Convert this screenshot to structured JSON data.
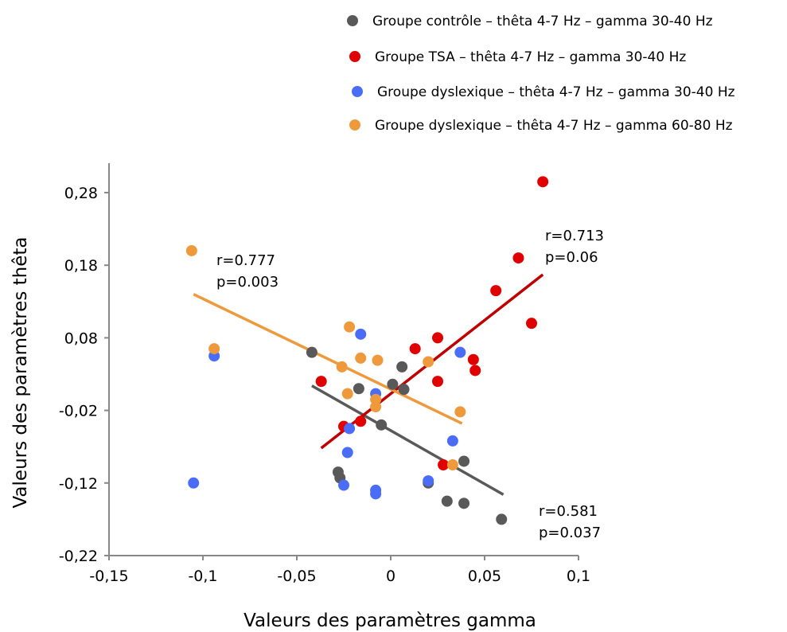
{
  "chart_data": {
    "type": "scatter",
    "xlabel": "Valeurs des paramètres gamma",
    "ylabel": "Valeurs des paramètres thêta",
    "xlim": [
      -0.15,
      0.1
    ],
    "ylim": [
      -0.22,
      0.32
    ],
    "x_ticks": [
      -0.15,
      -0.1,
      -0.05,
      0,
      0.05,
      0.1
    ],
    "x_tick_labels": [
      "-0,15",
      "-0,1",
      "-0,05",
      "0",
      "0,05",
      "0,1"
    ],
    "y_ticks": [
      -0.22,
      -0.12,
      -0.02,
      0.08,
      0.18,
      0.28
    ],
    "y_tick_labels": [
      "-0,22",
      "-0,12",
      "-0,02",
      "0,08",
      "0,18",
      "0,28"
    ],
    "grid": false,
    "legend_position": "top-right",
    "series": [
      {
        "name": "Groupe contrôle – thêta 4-7 Hz – gamma 30-40 Hz",
        "color": "#595959",
        "line_color": "#595959",
        "points": [
          [
            -0.042,
            0.06
          ],
          [
            -0.017,
            0.01
          ],
          [
            0.001,
            0.016
          ],
          [
            0.006,
            0.04
          ],
          [
            0.007,
            0.009
          ],
          [
            -0.005,
            -0.04
          ],
          [
            -0.028,
            -0.105
          ],
          [
            -0.027,
            -0.113
          ],
          [
            0.02,
            -0.12
          ],
          [
            0.039,
            -0.09
          ],
          [
            0.03,
            -0.145
          ],
          [
            0.039,
            -0.148
          ],
          [
            0.059,
            -0.17
          ]
        ],
        "trend_line": [
          [
            -0.042,
            0.014
          ],
          [
            0.06,
            -0.136
          ]
        ],
        "annotation": [
          "r=0.581",
          "p=0.037"
        ]
      },
      {
        "name": "Groupe TSA – thêta 4-7 Hz – gamma 30-40 Hz",
        "color": "#e00000",
        "line_color": "#c00000",
        "points": [
          [
            -0.037,
            0.02
          ],
          [
            -0.025,
            -0.042
          ],
          [
            -0.016,
            -0.035
          ],
          [
            0.013,
            0.065
          ],
          [
            0.025,
            0.08
          ],
          [
            0.025,
            0.02
          ],
          [
            0.028,
            -0.095
          ],
          [
            0.044,
            0.05
          ],
          [
            0.045,
            0.035
          ],
          [
            0.056,
            0.145
          ],
          [
            0.068,
            0.19
          ],
          [
            0.075,
            0.1
          ],
          [
            0.081,
            0.295
          ]
        ],
        "trend_line": [
          [
            -0.037,
            -0.072
          ],
          [
            0.081,
            0.167
          ]
        ],
        "annotation": [
          "r=0.713",
          "p=0.06"
        ]
      },
      {
        "name": "Groupe dyslexique – thêta 4-7 Hz – gamma 30-40 Hz",
        "color": "#4a6cf7",
        "line_color": "",
        "points": [
          [
            -0.105,
            -0.12
          ],
          [
            -0.094,
            0.055
          ],
          [
            -0.016,
            0.085
          ],
          [
            -0.022,
            -0.045
          ],
          [
            -0.023,
            -0.078
          ],
          [
            -0.025,
            -0.123
          ],
          [
            -0.008,
            0.003
          ],
          [
            -0.008,
            -0.13
          ],
          [
            -0.008,
            -0.135
          ],
          [
            0.02,
            -0.117
          ],
          [
            0.033,
            -0.062
          ],
          [
            0.037,
            0.06
          ]
        ]
      },
      {
        "name": "Groupe dyslexique – thêta 4-7 Hz – gamma 60-80 Hz",
        "color": "#ee9a3c",
        "line_color": "#ee9a3c",
        "points": [
          [
            -0.106,
            0.2
          ],
          [
            -0.094,
            0.065
          ],
          [
            -0.022,
            0.095
          ],
          [
            -0.026,
            0.04
          ],
          [
            -0.023,
            0.003
          ],
          [
            -0.016,
            0.052
          ],
          [
            -0.007,
            0.049
          ],
          [
            -0.008,
            -0.005
          ],
          [
            -0.008,
            -0.015
          ],
          [
            0.02,
            0.047
          ],
          [
            0.033,
            -0.095
          ],
          [
            0.037,
            -0.022
          ]
        ],
        "trend_line": [
          [
            -0.105,
            0.14
          ],
          [
            0.038,
            -0.038
          ]
        ],
        "annotation": [
          "r=0.777",
          "p=0.003"
        ]
      }
    ]
  }
}
